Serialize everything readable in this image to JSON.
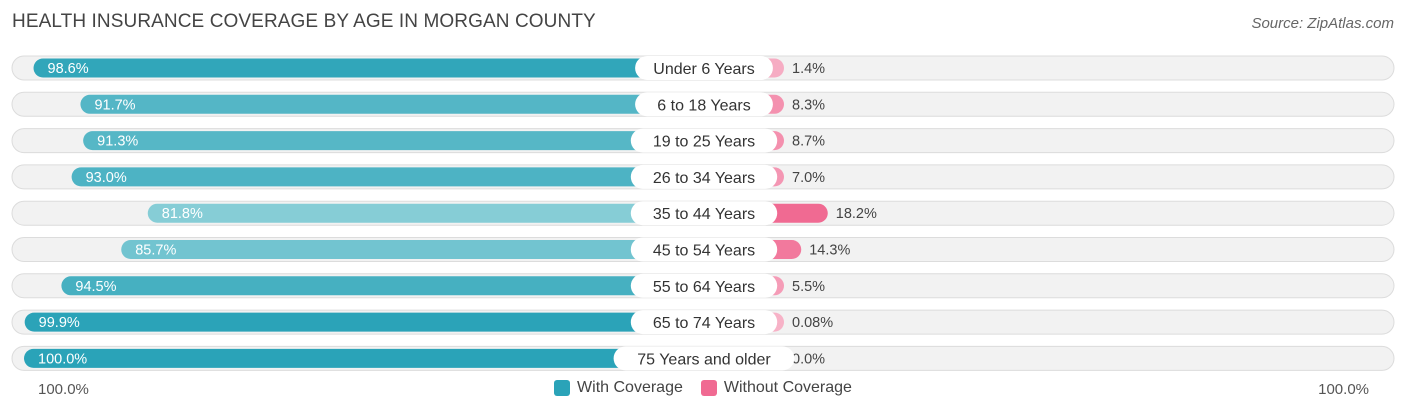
{
  "title": "HEALTH INSURANCE COVERAGE BY AGE IN MORGAN COUNTY",
  "source": "Source: ZipAtlas.com",
  "colors": {
    "with_strong": "#2aa3b8",
    "with_light": "#86cdd6",
    "without_strong": "#f06a92",
    "without_light": "#f7b2c7",
    "track_bg": "#f2f2f2",
    "track_border": "#dcdcdc"
  },
  "chart_data": {
    "type": "bar",
    "orientation": "horizontal-diverging",
    "title": "HEALTH INSURANCE COVERAGE BY AGE IN MORGAN COUNTY",
    "categories": [
      "Under 6 Years",
      "6 to 18 Years",
      "19 to 25 Years",
      "26 to 34 Years",
      "35 to 44 Years",
      "45 to 54 Years",
      "55 to 64 Years",
      "65 to 74 Years",
      "75 Years and older"
    ],
    "series": [
      {
        "name": "With Coverage",
        "values": [
          98.6,
          91.7,
          91.3,
          93.0,
          81.8,
          85.7,
          94.5,
          99.9,
          100.0
        ],
        "labels": [
          "98.6%",
          "91.7%",
          "91.3%",
          "93.0%",
          "81.8%",
          "85.7%",
          "94.5%",
          "99.9%",
          "100.0%"
        ]
      },
      {
        "name": "Without Coverage",
        "values": [
          1.4,
          8.3,
          8.7,
          7.0,
          18.2,
          14.3,
          5.5,
          0.08,
          0.0
        ],
        "labels": [
          "1.4%",
          "8.3%",
          "8.7%",
          "7.0%",
          "18.2%",
          "14.3%",
          "5.5%",
          "0.08%",
          "0.0%"
        ]
      }
    ],
    "axis_left_label": "100.0%",
    "axis_right_label": "100.0%",
    "xlim": [
      0,
      100
    ],
    "legend_position": "bottom-center"
  }
}
